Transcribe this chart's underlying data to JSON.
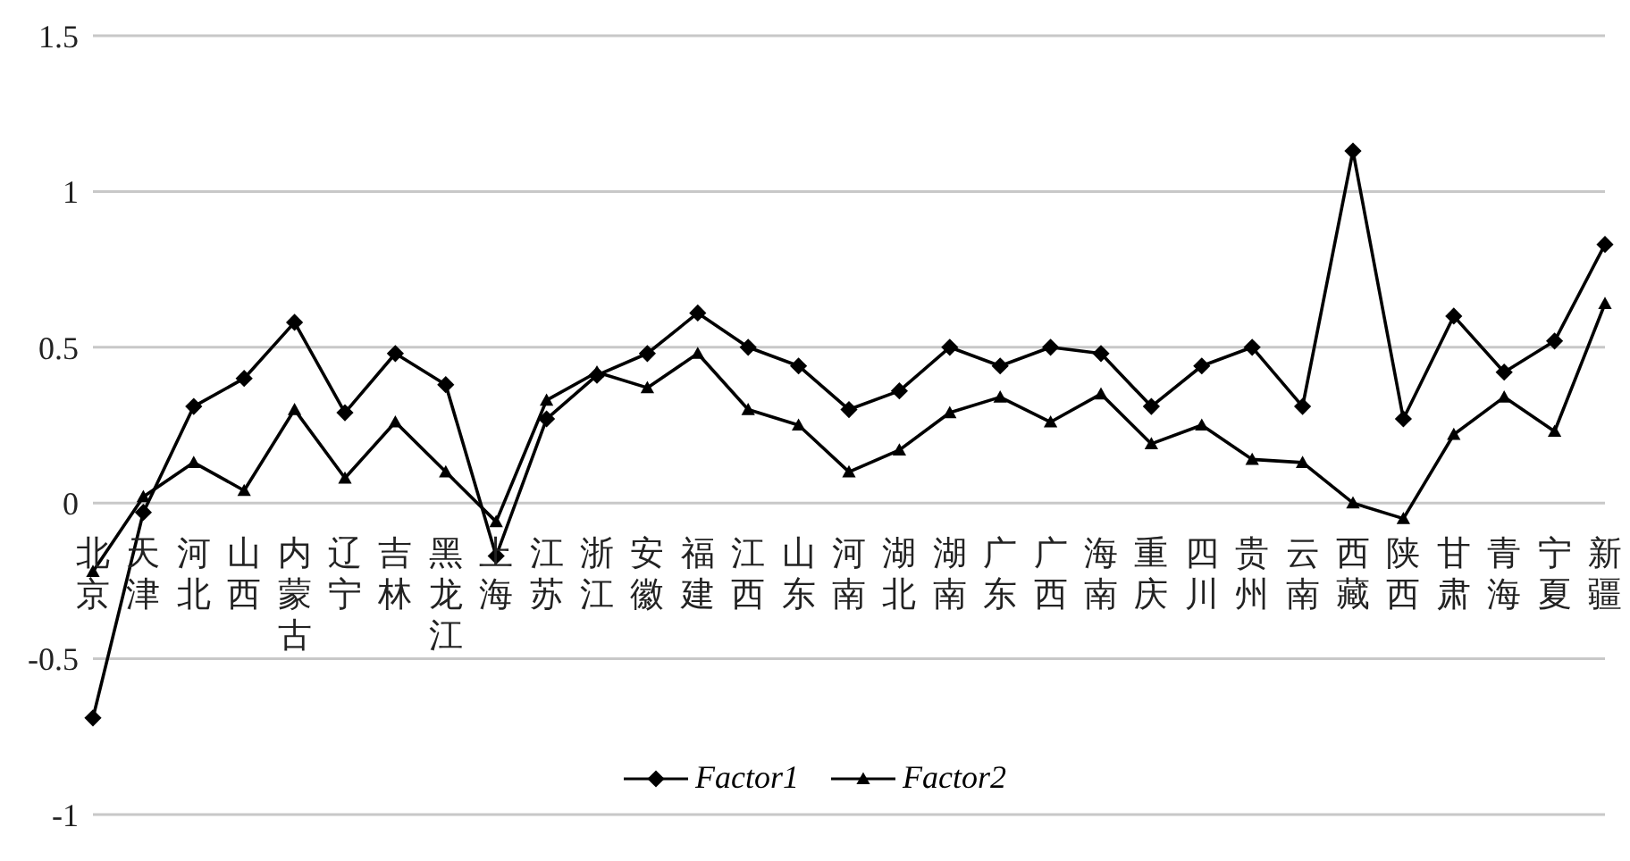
{
  "chart_data": {
    "type": "line",
    "categories": [
      "北京",
      "天津",
      "河北",
      "山西",
      "内蒙古",
      "辽宁",
      "吉林",
      "黑龙江",
      "上海",
      "江苏",
      "浙江",
      "安徽",
      "福建",
      "江西",
      "山东",
      "河南",
      "湖北",
      "湖南",
      "广东",
      "广西",
      "海南",
      "重庆",
      "四川",
      "贵州",
      "云南",
      "西藏",
      "陕西",
      "甘肃",
      "青海",
      "宁夏",
      "新疆"
    ],
    "series": [
      {
        "name": "Factor1",
        "color": "#000000",
        "marker": "diamond",
        "values": [
          -0.69,
          -0.03,
          0.31,
          0.4,
          0.58,
          0.29,
          0.48,
          0.38,
          -0.17,
          0.27,
          0.41,
          0.48,
          0.61,
          0.5,
          0.44,
          0.3,
          0.36,
          0.5,
          0.44,
          0.5,
          0.48,
          0.31,
          0.44,
          0.5,
          0.31,
          1.13,
          0.27,
          0.6,
          0.42,
          0.52,
          0.83
        ]
      },
      {
        "name": "Factor2",
        "color": "#000000",
        "marker": "triangle",
        "values": [
          -0.22,
          0.02,
          0.13,
          0.04,
          0.3,
          0.08,
          0.26,
          0.1,
          -0.06,
          0.33,
          0.42,
          0.37,
          0.48,
          0.3,
          0.25,
          0.1,
          0.17,
          0.29,
          0.34,
          0.26,
          0.35,
          0.19,
          0.25,
          0.14,
          0.13,
          0.0,
          -0.05,
          0.22,
          0.34,
          0.23,
          0.64
        ]
      }
    ],
    "ylim": [
      -1,
      1.5
    ],
    "yticks": [
      -1,
      -0.5,
      0,
      0.5,
      1,
      1.5
    ],
    "grid": "y",
    "legend": "bottom",
    "line_style": "solid"
  }
}
